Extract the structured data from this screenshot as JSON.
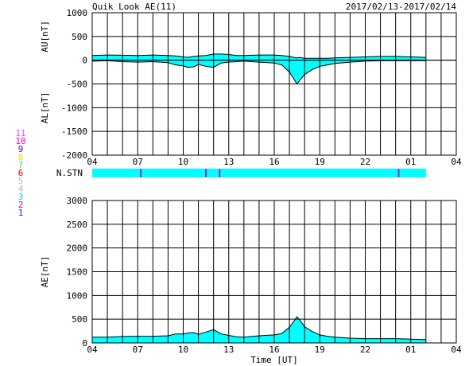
{
  "header": {
    "title": "Quik Look AE(11)",
    "date_range": "2017/02/13-2017/02/14"
  },
  "stations_legend": [
    {
      "label": "11",
      "color": "#ff44ff"
    },
    {
      "label": "10",
      "color": "#ff00aa"
    },
    {
      "label": "9",
      "color": "#2222ee"
    },
    {
      "label": "8",
      "color": "#ffdd00"
    },
    {
      "label": "7",
      "color": "#44dd44"
    },
    {
      "label": "6",
      "color": "#ee0000"
    },
    {
      "label": "5",
      "color": "#bbbbbb"
    },
    {
      "label": "4",
      "color": "#bbbbbb"
    },
    {
      "label": "3",
      "color": "#00cccc"
    },
    {
      "label": "2",
      "color": "#cc00cc"
    },
    {
      "label": "1",
      "color": "#2222ee"
    }
  ],
  "colors": {
    "fill": "#00ffff",
    "station_mark": "#8a2be2",
    "grid": "#000000"
  },
  "chart_data": [
    {
      "type": "area",
      "name": "AU/AL",
      "ylabel_upper": "AU[nT]",
      "ylabel_lower": "AL[nT]",
      "ylim": [
        -2000,
        1000
      ],
      "yticks": [
        1000,
        500,
        0,
        -500,
        -1000,
        -1500,
        -2000
      ],
      "xlim": [
        4,
        28
      ],
      "xtick_labels": [
        "04",
        "07",
        "10",
        "13",
        "16",
        "19",
        "22",
        "01",
        "04"
      ],
      "grid": true,
      "x": [
        4.0,
        5.0,
        6.0,
        7.0,
        8.0,
        9.0,
        9.5,
        10.0,
        10.3,
        10.7,
        11.0,
        11.5,
        12.0,
        12.5,
        13.0,
        13.5,
        14.0,
        15.0,
        16.0,
        16.5,
        17.0,
        17.3,
        17.5,
        17.7,
        18.0,
        18.5,
        19.0,
        19.5,
        20.0,
        21.0,
        22.0,
        23.0,
        24.0,
        25.0,
        26.0
      ],
      "au": [
        100,
        110,
        105,
        100,
        110,
        100,
        90,
        70,
        60,
        80,
        90,
        100,
        130,
        130,
        120,
        100,
        100,
        110,
        110,
        100,
        80,
        60,
        50,
        60,
        40,
        40,
        40,
        40,
        50,
        60,
        70,
        80,
        80,
        70,
        60
      ],
      "al": [
        -20,
        -10,
        -30,
        -40,
        -30,
        -50,
        -100,
        -120,
        -150,
        -140,
        -90,
        -130,
        -150,
        -60,
        -40,
        -30,
        -20,
        -40,
        -60,
        -100,
        -250,
        -400,
        -500,
        -420,
        -300,
        -200,
        -130,
        -100,
        -70,
        -40,
        -20,
        -10,
        -10,
        -10,
        -10
      ]
    },
    {
      "type": "table",
      "name": "N.STN",
      "label": "N.STN",
      "xlim": [
        4,
        28
      ],
      "data_start": 4.0,
      "data_end": 26.0,
      "station_change_x": [
        7.2,
        11.5,
        12.4,
        24.2
      ]
    },
    {
      "type": "area",
      "name": "AE",
      "ylabel": "AE[nT]",
      "xlabel": "Time [UT]",
      "ylim": [
        0,
        3000
      ],
      "yticks": [
        3000,
        2500,
        2000,
        1500,
        1000,
        500,
        0
      ],
      "xlim": [
        4,
        28
      ],
      "xtick_labels": [
        "04",
        "07",
        "10",
        "13",
        "16",
        "19",
        "22",
        "01",
        "04"
      ],
      "grid": true,
      "x": [
        4.0,
        5.0,
        6.0,
        7.0,
        8.0,
        9.0,
        9.5,
        10.0,
        10.3,
        10.7,
        11.0,
        11.5,
        12.0,
        12.5,
        13.0,
        13.5,
        14.0,
        15.0,
        16.0,
        16.5,
        17.0,
        17.3,
        17.5,
        17.7,
        18.0,
        18.5,
        19.0,
        19.5,
        20.0,
        21.0,
        22.0,
        23.0,
        24.0,
        25.0,
        26.0
      ],
      "values": [
        120,
        120,
        135,
        140,
        140,
        150,
        190,
        190,
        210,
        220,
        180,
        230,
        280,
        190,
        160,
        130,
        120,
        150,
        170,
        200,
        330,
        460,
        550,
        480,
        340,
        240,
        170,
        140,
        120,
        100,
        90,
        90,
        90,
        80,
        70
      ]
    }
  ]
}
